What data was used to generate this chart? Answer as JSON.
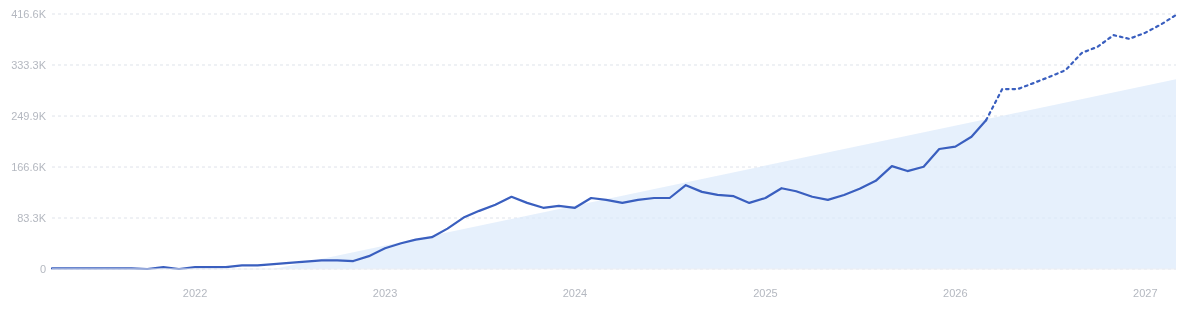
{
  "chart_data": {
    "type": "line",
    "x": [
      "2021-04",
      "2021-05",
      "2021-06",
      "2021-07",
      "2021-08",
      "2021-09",
      "2021-10",
      "2021-11",
      "2021-12",
      "2022-01",
      "2022-02",
      "2022-03",
      "2022-04",
      "2022-05",
      "2022-06",
      "2022-07",
      "2022-08",
      "2022-09",
      "2022-10",
      "2022-11",
      "2022-12",
      "2023-01",
      "2023-02",
      "2023-03",
      "2023-04",
      "2023-05",
      "2023-06",
      "2023-07",
      "2023-08",
      "2023-09",
      "2023-10",
      "2023-11",
      "2023-12",
      "2024-01",
      "2024-02",
      "2024-03",
      "2024-04",
      "2024-05",
      "2024-06",
      "2024-07",
      "2024-08",
      "2024-09",
      "2024-10",
      "2024-11",
      "2024-12",
      "2025-01",
      "2025-02",
      "2025-03",
      "2025-04",
      "2025-05",
      "2025-06",
      "2025-07",
      "2025-08",
      "2025-09",
      "2025-10",
      "2025-11",
      "2025-12",
      "2026-01",
      "2026-02",
      "2026-03"
    ],
    "series": [
      {
        "type": "area",
        "color": "#dce9fb",
        "x": [
          "2022-06",
          "2027-03"
        ],
        "values": [
          0,
          310000
        ]
      },
      {
        "color": "#3a5fbf",
        "line_style": "solid",
        "values": [
          1000,
          1000,
          1000,
          1000,
          1000,
          1000,
          0,
          3000,
          0,
          3000,
          3000,
          3000,
          6000,
          6000,
          8000,
          10000,
          12000,
          14000,
          14000,
          13000,
          21000,
          34000,
          42000,
          48000,
          52000,
          66000,
          84000,
          95000,
          105000,
          118000,
          108000,
          100000,
          103000,
          100000,
          116000,
          113000,
          108000,
          113000,
          116000,
          116000,
          137000,
          126000,
          121000,
          119000,
          108000,
          116000,
          132000,
          127000,
          118000,
          113000,
          121000,
          131000,
          144000,
          168000,
          160000,
          167000,
          196000,
          200000,
          216000,
          243000
        ]
      },
      {
        "color": "#3a5fbf",
        "line_style": "dotted",
        "x": [
          "2026-03",
          "2026-04",
          "2026-05",
          "2026-06",
          "2026-07",
          "2026-08",
          "2026-09",
          "2026-10",
          "2026-11",
          "2026-12",
          "2027-01",
          "2027-02",
          "2027-03"
        ],
        "values": [
          243000,
          294000,
          294000,
          304000,
          314000,
          325000,
          353000,
          363000,
          382000,
          376000,
          386000,
          400000,
          415000
        ]
      }
    ],
    "xlim": [
      "2021-04",
      "2027-03"
    ],
    "xticks": [
      "2022",
      "2023",
      "2024",
      "2025",
      "2026",
      "2027"
    ],
    "ylim": [
      0,
      416600
    ],
    "yticks": [
      {
        "value": 0,
        "label": "0"
      },
      {
        "value": 83300,
        "label": "83.3K"
      },
      {
        "value": 166600,
        "label": "166.6K"
      },
      {
        "value": 249900,
        "label": "249.9K"
      },
      {
        "value": 333300,
        "label": "333.3K"
      },
      {
        "value": 416600,
        "label": "416.6K"
      }
    ],
    "grid": "y",
    "marker": "none"
  }
}
